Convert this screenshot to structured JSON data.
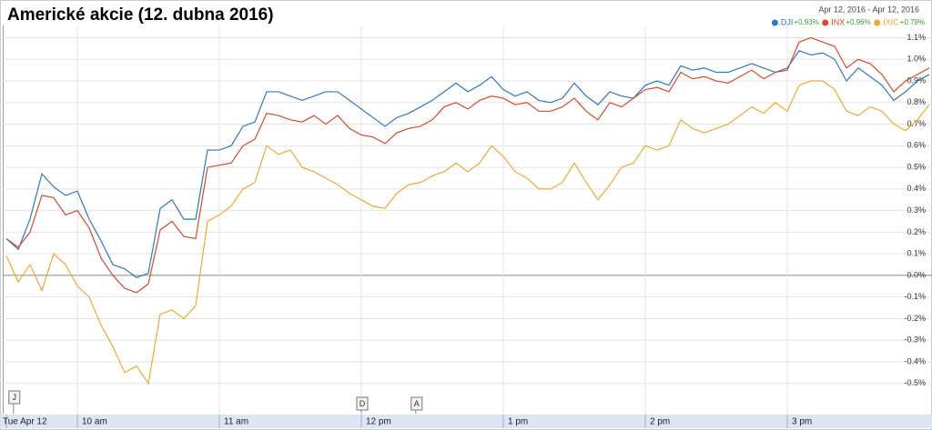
{
  "chart_data": {
    "type": "line",
    "title": "Americké akcie (12. dubna 2016)",
    "date_range": "Apr 12, 2016  -  Apr 12, 2016",
    "x": [
      570,
      575,
      580,
      585,
      590,
      595,
      600,
      605,
      610,
      615,
      620,
      625,
      630,
      635,
      640,
      645,
      650,
      655,
      660,
      665,
      670,
      675,
      680,
      685,
      690,
      695,
      700,
      705,
      710,
      715,
      720,
      725,
      730,
      735,
      740,
      745,
      750,
      755,
      760,
      765,
      770,
      775,
      780,
      785,
      790,
      795,
      800,
      805,
      810,
      815,
      820,
      825,
      830,
      835,
      840,
      845,
      850,
      855,
      860,
      865,
      870,
      875,
      880,
      885,
      890,
      895,
      900,
      905,
      910,
      915,
      920,
      925,
      930,
      935,
      940,
      945,
      950,
      955,
      960
    ],
    "xlim": [
      570,
      960
    ],
    "xticks": [
      {
        "value": 570,
        "label": "Tue Apr 12"
      },
      {
        "value": 600,
        "label": "10 am"
      },
      {
        "value": 660,
        "label": "11 am"
      },
      {
        "value": 720,
        "label": "12 pm"
      },
      {
        "value": 780,
        "label": "1 pm"
      },
      {
        "value": 840,
        "label": "2 pm"
      },
      {
        "value": 900,
        "label": "3 pm"
      }
    ],
    "ylim": [
      -0.64,
      1.14
    ],
    "yticks": [
      {
        "value": 1.1,
        "label": "1.1%"
      },
      {
        "value": 1.0,
        "label": "1.0%"
      },
      {
        "value": 0.9,
        "label": "0.9%"
      },
      {
        "value": 0.8,
        "label": "0.8%"
      },
      {
        "value": 0.7,
        "label": "0.7%"
      },
      {
        "value": 0.6,
        "label": "0.6%"
      },
      {
        "value": 0.5,
        "label": "0.5%"
      },
      {
        "value": 0.4,
        "label": "0.4%"
      },
      {
        "value": 0.3,
        "label": "0.3%"
      },
      {
        "value": 0.2,
        "label": "0.2%"
      },
      {
        "value": 0.1,
        "label": "0.1%"
      },
      {
        "value": 0,
        "label": "0.0%"
      },
      {
        "value": -0.1,
        "label": "-0.1%"
      },
      {
        "value": -0.2,
        "label": "-0.2%"
      },
      {
        "value": -0.3,
        "label": "-0.3%"
      },
      {
        "value": -0.4,
        "label": "-0.4%"
      },
      {
        "value": -0.5,
        "label": "-0.5%"
      }
    ],
    "grid": true,
    "legend": "top-right",
    "series": [
      {
        "name": ".DJI",
        "change": "+0.93%",
        "color": "#2f77c0",
        "values": [
          0.17,
          0.12,
          0.26,
          0.47,
          0.41,
          0.37,
          0.39,
          0.26,
          0.16,
          0.05,
          0.03,
          -0.01,
          0.01,
          0.31,
          0.35,
          0.26,
          0.26,
          0.58,
          0.58,
          0.6,
          0.69,
          0.71,
          0.85,
          0.85,
          0.83,
          0.81,
          0.83,
          0.85,
          0.85,
          0.81,
          0.77,
          0.73,
          0.69,
          0.73,
          0.75,
          0.78,
          0.81,
          0.85,
          0.89,
          0.85,
          0.88,
          0.92,
          0.86,
          0.83,
          0.85,
          0.81,
          0.8,
          0.82,
          0.89,
          0.83,
          0.79,
          0.85,
          0.83,
          0.82,
          0.88,
          0.9,
          0.88,
          0.97,
          0.95,
          0.96,
          0.94,
          0.94,
          0.96,
          0.98,
          0.96,
          0.94,
          0.96,
          1.04,
          1.02,
          1.03,
          1.0,
          0.9,
          0.96,
          0.92,
          0.88,
          0.81,
          0.85,
          0.9,
          0.93
        ]
      },
      {
        "name": ".INX",
        "change": "+0.96%",
        "color": "#d9472b",
        "values": [
          0.17,
          0.13,
          0.2,
          0.37,
          0.36,
          0.28,
          0.3,
          0.22,
          0.08,
          0.0,
          -0.06,
          -0.08,
          -0.04,
          0.21,
          0.25,
          0.18,
          0.17,
          0.5,
          0.51,
          0.52,
          0.6,
          0.63,
          0.75,
          0.74,
          0.72,
          0.71,
          0.74,
          0.7,
          0.74,
          0.68,
          0.65,
          0.64,
          0.61,
          0.66,
          0.68,
          0.69,
          0.72,
          0.78,
          0.8,
          0.77,
          0.81,
          0.83,
          0.82,
          0.79,
          0.8,
          0.76,
          0.76,
          0.78,
          0.82,
          0.76,
          0.72,
          0.8,
          0.78,
          0.82,
          0.86,
          0.87,
          0.85,
          0.94,
          0.91,
          0.92,
          0.9,
          0.89,
          0.92,
          0.95,
          0.91,
          0.94,
          0.95,
          1.08,
          1.1,
          1.08,
          1.06,
          0.96,
          1.0,
          0.98,
          0.93,
          0.85,
          0.9,
          0.93,
          0.96
        ]
      },
      {
        "name": ".IXIC",
        "change": "+0.79%",
        "color": "#f0a830",
        "values": [
          0.09,
          -0.03,
          0.05,
          -0.07,
          0.1,
          0.05,
          -0.05,
          -0.1,
          -0.23,
          -0.33,
          -0.45,
          -0.42,
          -0.5,
          -0.18,
          -0.16,
          -0.2,
          -0.14,
          0.25,
          0.28,
          0.32,
          0.4,
          0.43,
          0.6,
          0.56,
          0.58,
          0.5,
          0.48,
          0.45,
          0.42,
          0.38,
          0.35,
          0.32,
          0.31,
          0.38,
          0.42,
          0.43,
          0.46,
          0.48,
          0.52,
          0.48,
          0.52,
          0.6,
          0.55,
          0.48,
          0.45,
          0.4,
          0.4,
          0.43,
          0.52,
          0.43,
          0.35,
          0.42,
          0.5,
          0.52,
          0.6,
          0.58,
          0.6,
          0.72,
          0.68,
          0.66,
          0.68,
          0.7,
          0.74,
          0.78,
          0.75,
          0.8,
          0.76,
          0.88,
          0.9,
          0.9,
          0.86,
          0.76,
          0.74,
          0.78,
          0.76,
          0.7,
          0.67,
          0.72,
          0.79
        ]
      }
    ],
    "annotations": [
      {
        "x": 573,
        "label": "J"
      },
      {
        "x": 720,
        "label": "D"
      },
      {
        "x": 743,
        "label": "A"
      }
    ]
  }
}
